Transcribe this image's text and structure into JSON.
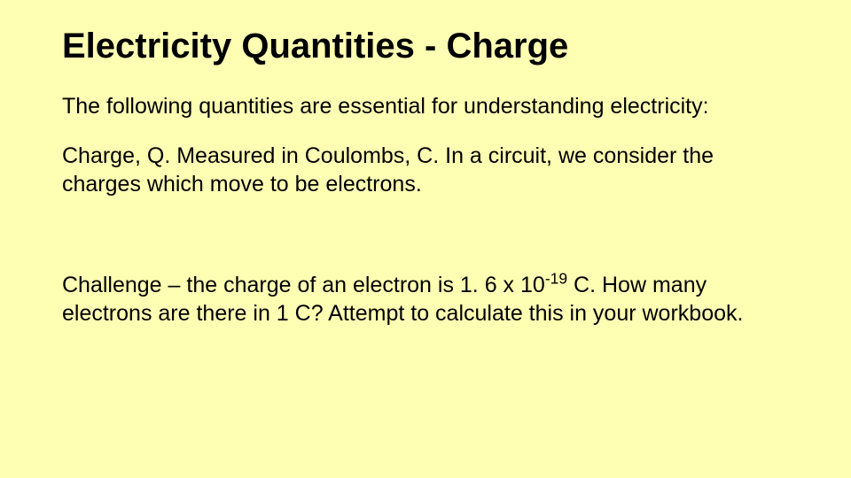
{
  "slide": {
    "background_color": "#ffffb3",
    "text_color": "#000000",
    "font_family": "Comic Sans MS",
    "title": "Electricity Quantities - Charge",
    "title_fontsize": 40,
    "title_weight": "bold",
    "body_fontsize": 25,
    "paragraphs": {
      "intro": "The following quantities are essential for understanding electricity:",
      "charge_def": "Charge, Q. Measured in Coulombs, C. In a circuit, we consider the charges which move to be electrons.",
      "challenge_pre": "Challenge – the charge of an electron is 1. 6 x 10",
      "challenge_exp": "-19",
      "challenge_post": " C. How many electrons are there in 1 C? Attempt to calculate this in your workbook."
    }
  }
}
